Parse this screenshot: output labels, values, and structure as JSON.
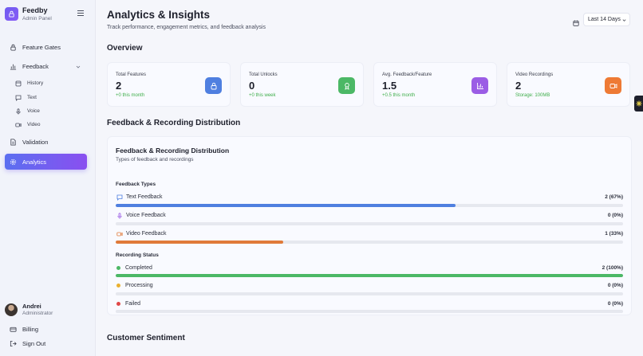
{
  "brand": {
    "name": "Feedby",
    "subtitle": "Admin Panel"
  },
  "sidebar": {
    "items": [
      {
        "label": "Feature Gates",
        "icon": "lock-icon"
      },
      {
        "label": "Feedback",
        "icon": "bar-chart-icon"
      },
      {
        "label": "Validation",
        "icon": "document-icon"
      },
      {
        "label": "Analytics",
        "icon": "gear-icon",
        "active": true
      }
    ],
    "feedback_sub": [
      {
        "label": "History",
        "icon": "history-icon"
      },
      {
        "label": "Text",
        "icon": "message-icon"
      },
      {
        "label": "Voice",
        "icon": "mic-icon"
      },
      {
        "label": "Video",
        "icon": "video-icon"
      }
    ],
    "bottom": [
      {
        "label": "Billing",
        "icon": "card-icon"
      },
      {
        "label": "Sign Out",
        "icon": "sign-out-icon"
      }
    ]
  },
  "user": {
    "name": "Andrei",
    "role": "Administrator"
  },
  "header": {
    "title": "Analytics & Insights",
    "subtitle": "Track performance, engagement metrics, and feedback analysis",
    "date_range": "Last 14 Days"
  },
  "overview": {
    "title": "Overview",
    "cards": [
      {
        "label": "Total Features",
        "value": "2",
        "delta": "+0 this month",
        "color": "#4f7fe0",
        "icon": "lock-icon"
      },
      {
        "label": "Total Unlocks",
        "value": "0",
        "delta": "+0 this week",
        "color": "#4cb866",
        "icon": "award-icon"
      },
      {
        "label": "Avg. Feedback/Feature",
        "value": "1.5",
        "delta": "+0.5 this month",
        "color": "#9b5de5",
        "icon": "bar-chart-icon"
      },
      {
        "label": "Video Recordings",
        "value": "2",
        "delta": "Storage: 100MB",
        "color": "#ee7a35",
        "icon": "video-icon"
      }
    ]
  },
  "distribution": {
    "section_title": "Feedback & Recording Distribution",
    "card_title": "Feedback & Recording Distribution",
    "card_subtitle": "Types of feedback and recordings",
    "feedback_types": {
      "title": "Feedback Types",
      "rows": [
        {
          "label": "Text Feedback",
          "value": "2 (67%)",
          "pct": 0.67,
          "color": "#4f7fe0",
          "icon": "message-icon"
        },
        {
          "label": "Voice Feedback",
          "value": "0 (0%)",
          "pct": 0,
          "color": "#9b5de5",
          "icon": "mic-icon"
        },
        {
          "label": "Video Feedback",
          "value": "1 (33%)",
          "pct": 0.33,
          "color": "#e07a3a",
          "icon": "video-icon"
        }
      ]
    },
    "recording_status": {
      "title": "Recording Status",
      "rows": [
        {
          "label": "Completed",
          "value": "2 (100%)",
          "pct": 1.0,
          "color": "#4cb866"
        },
        {
          "label": "Processing",
          "value": "0 (0%)",
          "pct": 0,
          "color": "#eab030"
        },
        {
          "label": "Failed",
          "value": "0 (0%)",
          "pct": 0,
          "color": "#e04848"
        }
      ]
    }
  },
  "sentiment": {
    "title": "Customer Sentiment"
  }
}
